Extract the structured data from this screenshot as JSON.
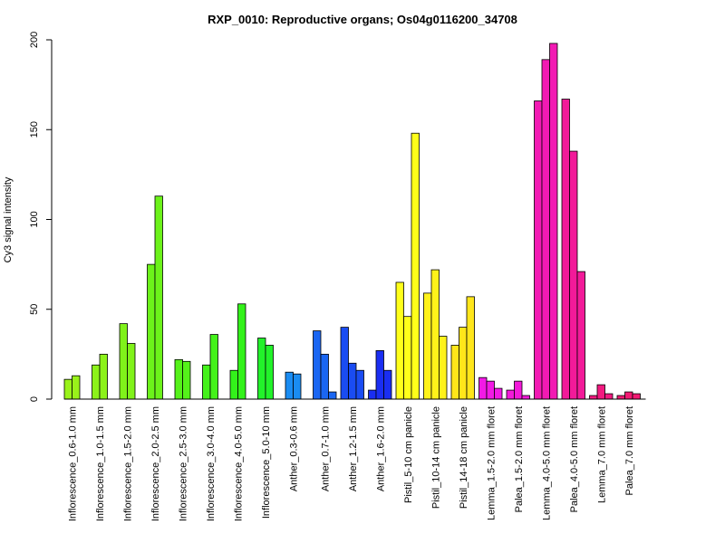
{
  "chart_data": {
    "type": "bar",
    "title": "RXP_0010: Reproductive organs; Os04g0116200_34708",
    "ylabel": "Cy3 signal intensity",
    "xlabel": "",
    "ylim": [
      0,
      200
    ],
    "yticks": [
      0,
      50,
      100,
      150,
      200
    ],
    "groups": [
      {
        "label": "Inflorescence_0.6-1.0 mm",
        "color": "#99f21a",
        "values": [
          11,
          13
        ]
      },
      {
        "label": "Inflorescence_1.0-1.5 mm",
        "color": "#8cf21a",
        "values": [
          19,
          25
        ]
      },
      {
        "label": "Inflorescence_1.5-2.0 mm",
        "color": "#80f21a",
        "values": [
          42,
          31
        ]
      },
      {
        "label": "Inflorescence_2.0-2.5 mm",
        "color": "#6cf21a",
        "values": [
          75,
          113
        ]
      },
      {
        "label": "Inflorescence_2.5-3.0 mm",
        "color": "#55f21a",
        "values": [
          22,
          21
        ]
      },
      {
        "label": "Inflorescence_3.0-4.0 mm",
        "color": "#44f21a",
        "values": [
          19,
          36
        ]
      },
      {
        "label": "Inflorescence_4.0-5.0 mm",
        "color": "#33f21a",
        "values": [
          16,
          53
        ]
      },
      {
        "label": "Inflorescence_5.0-10 mm",
        "color": "#22f22a",
        "values": [
          34,
          30
        ]
      },
      {
        "label": "Anther_0.3-0.6 mm",
        "color": "#1a8cf2",
        "values": [
          15,
          14
        ]
      },
      {
        "label": "Anther_0.7-1.0 mm",
        "color": "#1a66f2",
        "values": [
          38,
          25,
          4
        ]
      },
      {
        "label": "Anther_1.2-1.5 mm",
        "color": "#1a4cf2",
        "values": [
          40,
          20,
          16
        ]
      },
      {
        "label": "Anther_1.6-2.0 mm",
        "color": "#1a2ef2",
        "values": [
          5,
          27,
          16
        ]
      },
      {
        "label": "Pistil_5-10 cm panicle",
        "color": "#ffff1a",
        "values": [
          65,
          46,
          148
        ]
      },
      {
        "label": "Pistil_10-14 cm panicle",
        "color": "#fff21a",
        "values": [
          59,
          72,
          35
        ]
      },
      {
        "label": "Pistil_14-18 cm panicle",
        "color": "#ffe61a",
        "values": [
          30,
          40,
          57
        ]
      },
      {
        "label": "Lemma_1.5-2.0 mm floret",
        "color": "#f21ae6",
        "values": [
          12,
          10,
          6
        ]
      },
      {
        "label": "Palea_1.5-2.0 mm floret",
        "color": "#f21ad9",
        "values": [
          5,
          10,
          2
        ]
      },
      {
        "label": "Lemma_4.0-5.0 mm floret",
        "color": "#f21ab3",
        "values": [
          166,
          189,
          198
        ]
      },
      {
        "label": "Palea_4.0-5.0 mm floret",
        "color": "#f21a99",
        "values": [
          167,
          138,
          71
        ]
      },
      {
        "label": "Lemma_7.0 mm floret",
        "color": "#f21a80",
        "values": [
          2,
          8,
          3
        ]
      },
      {
        "label": "Palea_7.0 mm floret",
        "color": "#f21a73",
        "values": [
          2,
          4,
          3
        ]
      }
    ]
  }
}
